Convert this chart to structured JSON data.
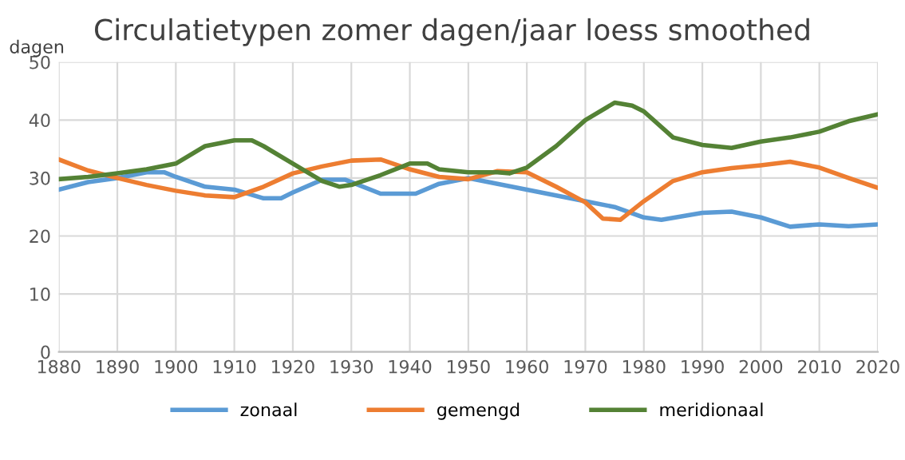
{
  "chart_data": {
    "type": "line",
    "title": "Circulatietypen zomer dagen/jaar loess smoothed",
    "ylabel": "dagen",
    "xlim": [
      1880,
      2020
    ],
    "xticks": [
      1880,
      1890,
      1900,
      1910,
      1920,
      1930,
      1940,
      1950,
      1960,
      1970,
      1980,
      1990,
      2000,
      2010,
      2020
    ],
    "ylim": [
      0,
      50
    ],
    "yticks": [
      0,
      10,
      20,
      30,
      40,
      50
    ],
    "grid": true,
    "legend": "bottom",
    "marker": "none",
    "line_style": "solid",
    "series": [
      {
        "name": "zonaal",
        "color": "#5b9bd5",
        "x": [
          1880,
          1885,
          1890,
          1895,
          1898,
          1900,
          1905,
          1910,
          1915,
          1918,
          1920,
          1925,
          1929,
          1935,
          1941,
          1945,
          1950,
          1955,
          1960,
          1965,
          1970,
          1975,
          1980,
          1983,
          1990,
          1995,
          2000,
          2005,
          2010,
          2015,
          2020
        ],
        "values": [
          28,
          29.3,
          30,
          31,
          31,
          30.2,
          28.5,
          28,
          26.5,
          26.5,
          27.5,
          29.7,
          29.7,
          27.3,
          27.3,
          29,
          30,
          29,
          28,
          27,
          26,
          25,
          23.2,
          22.8,
          24,
          24.2,
          23.2,
          21.6,
          22,
          21.7,
          22
        ]
      },
      {
        "name": "gemengd",
        "color": "#ed7d31",
        "x": [
          1880,
          1885,
          1890,
          1895,
          1900,
          1905,
          1910,
          1915,
          1920,
          1925,
          1930,
          1935,
          1940,
          1945,
          1950,
          1955,
          1960,
          1965,
          1970,
          1973,
          1976,
          1980,
          1985,
          1990,
          1995,
          2000,
          2005,
          2010,
          2015,
          2020
        ],
        "values": [
          33.2,
          31.3,
          30,
          28.8,
          27.8,
          27,
          26.7,
          28.5,
          30.8,
          32,
          33,
          33.2,
          31.5,
          30.2,
          29.8,
          31.2,
          31,
          28.5,
          25.8,
          23,
          22.8,
          26,
          29.5,
          31,
          31.7,
          32.2,
          32.8,
          31.8,
          30,
          28.3
        ]
      },
      {
        "name": "meridionaal",
        "color": "#548235",
        "x": [
          1880,
          1885,
          1890,
          1895,
          1900,
          1905,
          1910,
          1913,
          1915,
          1920,
          1925,
          1928,
          1930,
          1935,
          1940,
          1943,
          1945,
          1950,
          1955,
          1957,
          1960,
          1965,
          1970,
          1975,
          1978,
          1980,
          1985,
          1990,
          1995,
          2000,
          2005,
          2010,
          2015,
          2020
        ],
        "values": [
          29.8,
          30.2,
          30.8,
          31.5,
          32.5,
          35.5,
          36.5,
          36.5,
          35.5,
          32.5,
          29.5,
          28.5,
          28.8,
          30.5,
          32.5,
          32.5,
          31.5,
          31,
          31,
          30.8,
          31.8,
          35.5,
          40,
          43,
          42.5,
          41.5,
          37,
          35.7,
          35.2,
          36.3,
          37,
          38,
          39.8,
          41
        ]
      }
    ]
  }
}
